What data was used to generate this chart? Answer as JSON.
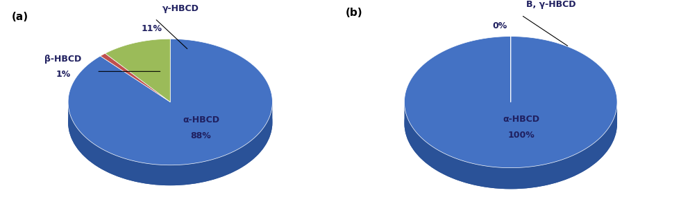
{
  "chart_a": {
    "label": "(a)",
    "values": [
      88,
      1,
      11
    ],
    "labels": [
      "α-HBCD",
      "β-HBCD",
      "γ-HBCD"
    ],
    "pct_labels": [
      "88%",
      "1%",
      "11%"
    ],
    "colors": [
      "#4472C4",
      "#C0504D",
      "#9BBB59"
    ],
    "shadow_colors": [
      "#2A5298",
      "#8B1A1A",
      "#6B8E23"
    ]
  },
  "chart_b": {
    "label": "(b)",
    "values": [
      100,
      0.001
    ],
    "labels": [
      "α-HBCD",
      "B, γ-HBCD"
    ],
    "pct_labels": [
      "100%",
      "0%"
    ],
    "colors": [
      "#4472C4",
      "#4472C4"
    ],
    "shadow_colors": [
      "#2A5298",
      "#2A5298"
    ]
  },
  "background_color": "#FFFFFF",
  "text_color": "#1F1F5F",
  "font_size": 9
}
